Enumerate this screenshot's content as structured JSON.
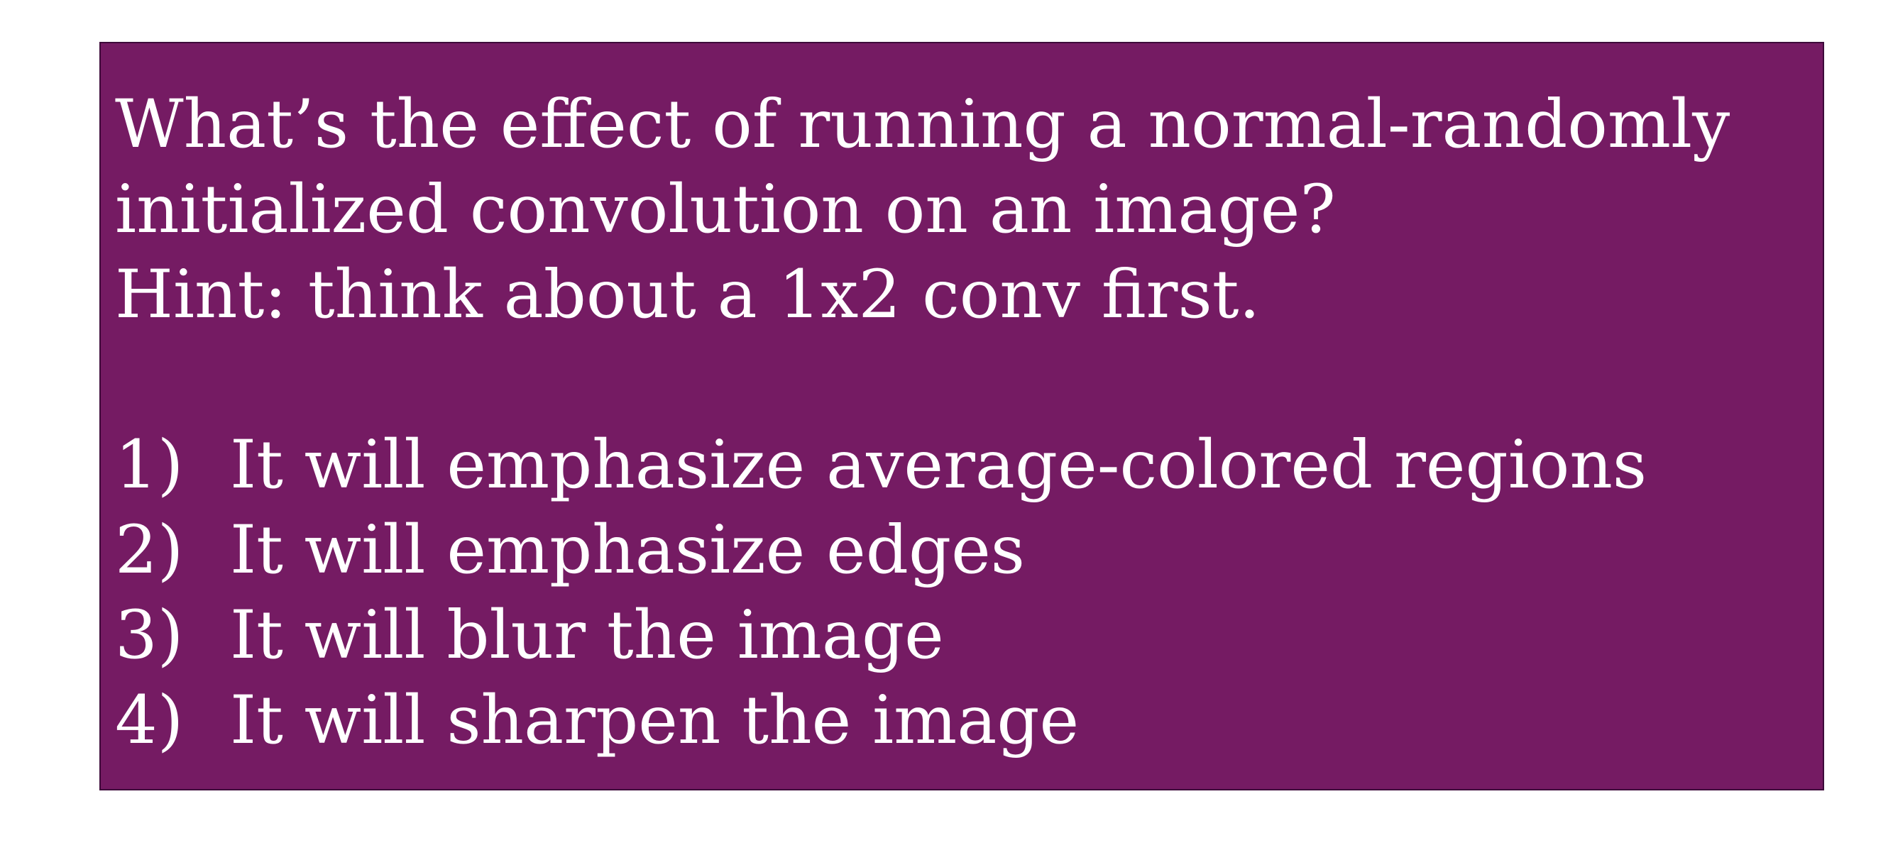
{
  "question_box": {
    "background_color": "#751b63",
    "border_color": "#3d0a3a",
    "text_color": "#ffffff",
    "question_lines": [
      "What’s the effect of running a normal-randomly",
      "initialized convolution on an image?",
      "Hint: think about a 1x2 conv first."
    ],
    "options": [
      {
        "number": "1)",
        "text": "It will emphasize average-colored regions"
      },
      {
        "number": "2)",
        "text": "It will emphasize edges"
      },
      {
        "number": "3)",
        "text": "It will blur the image"
      },
      {
        "number": "4)",
        "text": "It will sharpen the image"
      }
    ]
  }
}
